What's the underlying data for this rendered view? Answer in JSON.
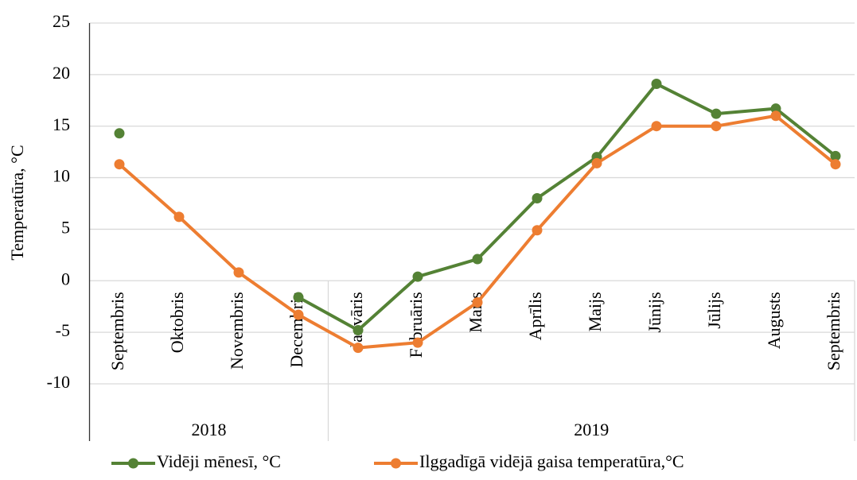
{
  "chart_data": {
    "type": "line",
    "y_axis_label": "Temperatūra, °C",
    "categories": [
      "Septembris",
      "Oktobris",
      "Novembris",
      "Decembris",
      "Janvāris",
      "Februāris",
      "Marts",
      "Aprīlis",
      "Maijs",
      "Jūnijs",
      "Jūlijs",
      "Augusts",
      "Septembris"
    ],
    "category_groups": [
      {
        "label": "2018",
        "count": 4
      },
      {
        "label": "2019",
        "count": 9
      }
    ],
    "series": [
      {
        "name": "Vidēji mēnesī, °C",
        "color": "#548235",
        "values": [
          14.3,
          null,
          null,
          -1.6,
          -4.8,
          0.4,
          2.1,
          8.0,
          12.0,
          19.1,
          16.2,
          16.7,
          12.1
        ]
      },
      {
        "name": "Ilggadīgā vidējā gaisa temperatūra,°C",
        "color": "#ed7d31",
        "values": [
          11.3,
          6.2,
          0.8,
          -3.3,
          -6.5,
          -6.0,
          -2.1,
          4.9,
          11.4,
          15.0,
          15.0,
          16.0,
          11.3
        ]
      }
    ],
    "ylim": [
      -10,
      25
    ],
    "yticks": [
      -10,
      -5,
      0,
      5,
      10,
      15,
      20,
      25
    ],
    "grid": true,
    "legend": "bottom"
  }
}
